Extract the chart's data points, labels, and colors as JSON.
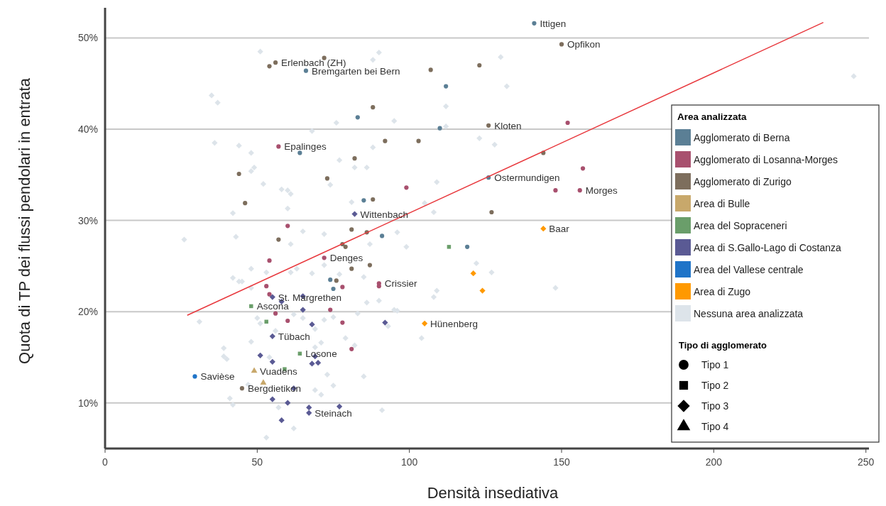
{
  "chart_data": {
    "type": "scatter",
    "xlabel": "Densità insediativa",
    "ylabel": "Quota di TP dei flussi pendolari in entrata",
    "legend_title": [
      "Area analizzata",
      "Tipo di agglomerato"
    ],
    "legend": "right",
    "grid": "y",
    "xlim": [
      0,
      251
    ],
    "xticks": [
      0,
      50,
      100,
      150,
      200,
      250
    ],
    "ylim": [
      5,
      53.3
    ],
    "yticks": [
      {
        "value": 10,
        "label": "10%"
      },
      {
        "value": 20,
        "label": "20%"
      },
      {
        "value": 30,
        "label": "30%"
      },
      {
        "value": 40,
        "label": "40%"
      },
      {
        "value": 50,
        "label": "50%"
      }
    ],
    "series": [
      {
        "name": "Agglomerato di Berna",
        "color": "#5b7f95",
        "marker": "circle",
        "x": [
          141,
          66,
          83,
          64,
          85,
          112,
          110,
          126,
          91,
          74,
          75,
          119
        ],
        "values": [
          51.6,
          46.4,
          41.3,
          37.4,
          32.2,
          44.7,
          40.1,
          34.7,
          28.3,
          23.5,
          22.5,
          27.1
        ]
      },
      {
        "name": "Agglomerato di Losanna-Morges",
        "color": "#a8506e",
        "marker": "circle",
        "x": [
          57,
          60,
          152,
          157,
          99,
          148,
          156,
          54,
          72,
          78,
          90,
          90,
          53,
          54,
          56,
          74,
          60,
          78,
          81
        ],
        "values": [
          38.1,
          29.4,
          40.7,
          35.7,
          33.6,
          33.3,
          33.3,
          25.6,
          25.9,
          22.7,
          23.1,
          22.8,
          22.8,
          21.9,
          19.8,
          20.2,
          19.0,
          18.8,
          15.9
        ]
      },
      {
        "name": "Agglomerato di Zurigo",
        "color": "#7d6e5d",
        "marker": "circle",
        "x": [
          54,
          56,
          72,
          88,
          44,
          46,
          92,
          82,
          73,
          88,
          81,
          86,
          150,
          107,
          123,
          126,
          103,
          144,
          127,
          57,
          78,
          79,
          81,
          87,
          76,
          45
        ],
        "values": [
          46.9,
          47.3,
          47.8,
          42.4,
          35.1,
          31.9,
          38.7,
          36.8,
          34.6,
          32.3,
          29.0,
          28.7,
          49.3,
          46.5,
          47.0,
          40.4,
          38.7,
          37.4,
          30.9,
          27.9,
          27.4,
          27.1,
          24.7,
          25.1,
          23.4,
          11.6
        ]
      },
      {
        "name": "Area di Bulle",
        "color": "#c8a86b",
        "marker": "triangle",
        "x": [
          49,
          52
        ],
        "values": [
          13.5,
          12.2
        ]
      },
      {
        "name": "Area del Sopraceneri",
        "color": "#6a9e6a",
        "marker": "square",
        "x": [
          48,
          53,
          64,
          59,
          113
        ],
        "values": [
          20.6,
          18.9,
          15.4,
          13.7,
          27.1
        ]
      },
      {
        "name": "Area di S.Gallo-Lago di Costanza",
        "color": "#5a5a94",
        "marker": "diamond",
        "x": [
          82,
          55,
          58,
          65,
          65,
          68,
          92,
          55,
          51,
          55,
          68,
          70,
          69,
          62,
          55,
          60,
          58,
          67,
          67,
          77
        ],
        "values": [
          30.7,
          21.6,
          21.1,
          21.7,
          20.2,
          18.6,
          18.8,
          17.3,
          15.2,
          14.5,
          14.3,
          14.4,
          15.1,
          11.6,
          10.4,
          10.0,
          8.1,
          8.9,
          9.5,
          9.6
        ]
      },
      {
        "name": "Area del Vallese centrale",
        "color": "#1f74c8",
        "marker": "circle",
        "x": [
          29.5
        ],
        "values": [
          12.9
        ]
      },
      {
        "name": "Area di Zugo",
        "color": "#ff9900",
        "marker": "diamond",
        "x": [
          144,
          121,
          124,
          105
        ],
        "values": [
          29.1,
          24.2,
          22.3,
          18.7
        ]
      },
      {
        "name": "Nessuna area analizzata",
        "color": "#dde4ea",
        "marker": "diamond",
        "x": [
          51,
          90,
          88,
          35,
          37,
          76,
          68,
          36,
          44,
          48,
          49,
          48,
          52,
          58,
          60,
          61,
          60,
          42,
          88,
          77,
          82,
          86,
          74,
          81,
          130,
          132,
          112,
          95,
          112,
          123,
          128,
          109,
          105,
          108,
          96,
          246,
          148,
          26,
          43,
          61,
          65,
          72,
          87,
          72,
          48,
          42,
          44,
          45,
          48,
          53,
          63,
          61,
          68,
          77,
          85,
          31,
          50,
          51,
          65,
          62,
          69,
          72,
          75,
          83,
          86,
          90,
          56,
          79,
          48,
          39,
          39,
          40,
          71,
          69,
          82,
          73,
          85,
          75,
          71,
          41,
          42,
          62,
          53,
          57,
          91,
          54,
          69,
          47,
          99,
          122,
          127,
          109,
          108,
          95,
          96,
          93,
          104
        ],
        "values": [
          48.5,
          48.4,
          47.6,
          43.7,
          42.9,
          40.7,
          39.8,
          38.5,
          38.2,
          37.4,
          35.8,
          35.4,
          34.0,
          33.4,
          33.3,
          32.9,
          31.3,
          30.8,
          38.0,
          36.6,
          35.8,
          35.8,
          33.9,
          32.0,
          47.9,
          44.7,
          42.5,
          40.9,
          40.3,
          39.0,
          38.3,
          34.2,
          31.9,
          30.9,
          28.7,
          45.8,
          22.6,
          27.9,
          28.2,
          27.4,
          28.8,
          28.5,
          27.4,
          25.1,
          24.7,
          23.7,
          23.3,
          23.3,
          22.6,
          24.3,
          24.7,
          24.3,
          24.2,
          24.1,
          23.8,
          18.9,
          19.3,
          18.7,
          19.3,
          19.7,
          18.1,
          19.1,
          19.4,
          19.8,
          21.0,
          21.2,
          17.9,
          17.1,
          16.7,
          16.0,
          15.1,
          14.8,
          16.6,
          16.1,
          16.3,
          13.1,
          12.9,
          11.9,
          10.9,
          10.5,
          9.8,
          7.2,
          6.2,
          9.5,
          9.2,
          15.0,
          11.4,
          12.0,
          27.1,
          25.3,
          24.3,
          22.3,
          21.6,
          20.2,
          20.1,
          18.4,
          17.1
        ]
      },
      {
        "name": "Tipo 1",
        "color": "#000000",
        "marker": "circle"
      },
      {
        "name": "Tipo 2",
        "color": "#000000",
        "marker": "square"
      },
      {
        "name": "Tipo 3",
        "color": "#000000",
        "marker": "diamond"
      },
      {
        "name": "Tipo 4",
        "color": "#000000",
        "marker": "triangle"
      },
      {
        "type": "line",
        "color": "#e8383d",
        "marker": "none",
        "x": [
          27,
          236
        ],
        "values": [
          19.6,
          51.7
        ]
      }
    ],
    "annotations": [
      {
        "text": "Ittigen",
        "x": 141,
        "y": 51.6
      },
      {
        "text": "Opfikon",
        "x": 150,
        "y": 49.3
      },
      {
        "text": "Erlenbach (ZH)",
        "x": 56,
        "y": 47.3
      },
      {
        "text": "Bremgarten bei Bern",
        "x": 66,
        "y": 46.4
      },
      {
        "text": "Kloten",
        "x": 126,
        "y": 40.4
      },
      {
        "text": "Epalinges",
        "x": 57,
        "y": 38.1
      },
      {
        "text": "Ostermundigen",
        "x": 126,
        "y": 34.7
      },
      {
        "text": "Morges",
        "x": 156,
        "y": 33.3
      },
      {
        "text": "Wittenbach",
        "x": 82,
        "y": 30.7
      },
      {
        "text": "Baar",
        "x": 144,
        "y": 29.1
      },
      {
        "text": "Denges",
        "x": 72,
        "y": 25.9
      },
      {
        "text": "Crissier",
        "x": 90,
        "y": 23.1
      },
      {
        "text": "St. Margrethen",
        "x": 55,
        "y": 21.6
      },
      {
        "text": "Ascona",
        "x": 48,
        "y": 20.6
      },
      {
        "text": "Hünenberg",
        "x": 105,
        "y": 18.7
      },
      {
        "text": "Tübach",
        "x": 55,
        "y": 17.3
      },
      {
        "text": "Losone",
        "x": 64,
        "y": 15.4
      },
      {
        "text": "Vuadens",
        "x": 49,
        "y": 13.5
      },
      {
        "text": "Savièse",
        "x": 29.5,
        "y": 12.9
      },
      {
        "text": "Bergdietikon",
        "x": 45,
        "y": 11.6
      },
      {
        "text": "Steinach",
        "x": 67,
        "y": 8.9
      }
    ]
  }
}
